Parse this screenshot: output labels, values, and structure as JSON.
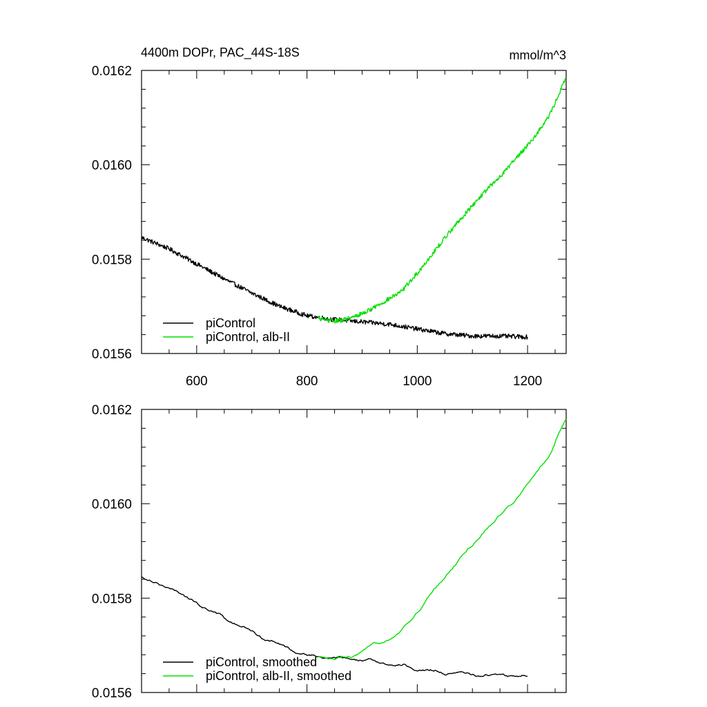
{
  "title_left": "4400m DOPr, PAC_44S-18S",
  "title_right": "mmol/m^3",
  "colors": {
    "black": "#000000",
    "green": "#00e000"
  },
  "chart_data": [
    {
      "type": "line",
      "xlim": [
        500,
        1270
      ],
      "ylim": [
        0.0156,
        0.0162
      ],
      "yticks": [
        "0.0156",
        "0.0158",
        "0.0160",
        "0.0162"
      ],
      "xticks": [
        "600",
        "800",
        "1000",
        "1200"
      ],
      "show_xtick_labels": true,
      "noisy": true,
      "legend_position": "bottom-left",
      "series": [
        {
          "name": "piControl",
          "color": "#000000",
          "points": [
            [
              500,
              0.015846
            ],
            [
              550,
              0.015822
            ],
            [
              600,
              0.01579
            ],
            [
              650,
              0.015758
            ],
            [
              700,
              0.015728
            ],
            [
              750,
              0.0157
            ],
            [
              800,
              0.01568
            ],
            [
              850,
              0.015672
            ],
            [
              900,
              0.015667
            ],
            [
              950,
              0.015662
            ],
            [
              1000,
              0.015652
            ],
            [
              1050,
              0.015642
            ],
            [
              1100,
              0.015637
            ],
            [
              1150,
              0.015637
            ],
            [
              1200,
              0.015635
            ]
          ]
        },
        {
          "name": "piControl, alb-II",
          "color": "#00e000",
          "points": [
            [
              820,
              0.015675
            ],
            [
              850,
              0.015668
            ],
            [
              880,
              0.015675
            ],
            [
              910,
              0.01569
            ],
            [
              940,
              0.01571
            ],
            [
              970,
              0.01573
            ],
            [
              1000,
              0.01577
            ],
            [
              1030,
              0.015815
            ],
            [
              1060,
              0.01586
            ],
            [
              1090,
              0.0159
            ],
            [
              1120,
              0.01594
            ],
            [
              1150,
              0.015975
            ],
            [
              1180,
              0.016015
            ],
            [
              1210,
              0.016055
            ],
            [
              1240,
              0.016105
            ],
            [
              1270,
              0.016185
            ]
          ]
        }
      ]
    },
    {
      "type": "line",
      "xlim": [
        500,
        1270
      ],
      "ylim": [
        0.0156,
        0.0162
      ],
      "yticks": [
        "0.0156",
        "0.0158",
        "0.0160",
        "0.0162"
      ],
      "xticks": [
        "600",
        "800",
        "1000",
        "1200"
      ],
      "show_xtick_labels": false,
      "noisy": false,
      "legend_position": "bottom-left",
      "series": [
        {
          "name": "piControl, smoothed",
          "color": "#000000",
          "points": [
            [
              500,
              0.015846
            ],
            [
              550,
              0.015822
            ],
            [
              600,
              0.01579
            ],
            [
              650,
              0.015758
            ],
            [
              700,
              0.015728
            ],
            [
              750,
              0.0157
            ],
            [
              800,
              0.01568
            ],
            [
              850,
              0.015672
            ],
            [
              900,
              0.015667
            ],
            [
              950,
              0.015662
            ],
            [
              1000,
              0.015652
            ],
            [
              1050,
              0.015642
            ],
            [
              1100,
              0.015637
            ],
            [
              1150,
              0.015637
            ],
            [
              1200,
              0.015635
            ]
          ]
        },
        {
          "name": "piControl, alb-II, smoothed",
          "color": "#00e000",
          "points": [
            [
              820,
              0.015675
            ],
            [
              850,
              0.015668
            ],
            [
              880,
              0.015675
            ],
            [
              910,
              0.01569
            ],
            [
              940,
              0.01571
            ],
            [
              970,
              0.01573
            ],
            [
              1000,
              0.01577
            ],
            [
              1030,
              0.015815
            ],
            [
              1060,
              0.01586
            ],
            [
              1090,
              0.0159
            ],
            [
              1120,
              0.01594
            ],
            [
              1150,
              0.015975
            ],
            [
              1180,
              0.016015
            ],
            [
              1210,
              0.016055
            ],
            [
              1240,
              0.016105
            ],
            [
              1270,
              0.01618
            ]
          ]
        }
      ]
    }
  ]
}
